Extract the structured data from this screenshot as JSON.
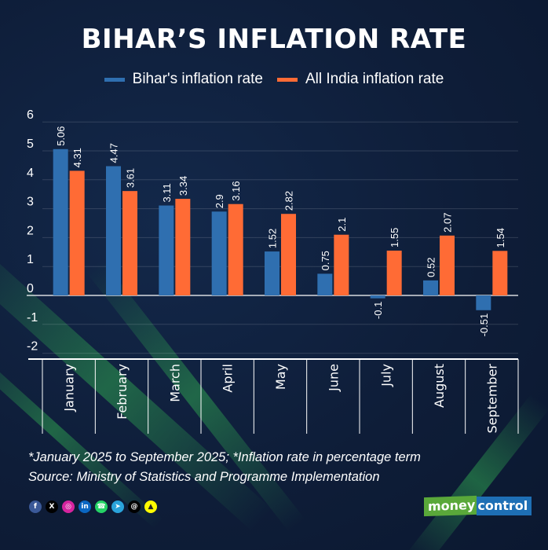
{
  "chart_data": {
    "type": "bar",
    "title": "BIHAR’S INFLATION RATE",
    "xlabel": "",
    "ylabel": "",
    "ylim": [
      -2,
      6
    ],
    "yticks": [
      6,
      5,
      4,
      3,
      2,
      1,
      0,
      -1,
      -2
    ],
    "grid": true,
    "legend_position": "top-center",
    "categories": [
      "January",
      "February",
      "March",
      "April",
      "May",
      "June",
      "July",
      "August",
      "September"
    ],
    "series": [
      {
        "name": "Bihar's inflation rate",
        "color": "#2f6fb0",
        "values": [
          5.06,
          4.47,
          3.11,
          2.9,
          1.52,
          0.75,
          -0.1,
          0.52,
          -0.51
        ],
        "labels": [
          "5.06",
          "4.47",
          "3.11",
          "2.9",
          "1.52",
          "0.75",
          "-0.1",
          "0.52",
          "-0.51"
        ]
      },
      {
        "name": "All India inflation rate",
        "color": "#ff6b35",
        "values": [
          4.31,
          3.61,
          3.34,
          3.16,
          2.82,
          2.1,
          1.55,
          2.07,
          1.54
        ],
        "labels": [
          "4.31",
          "3.61",
          "3.34",
          "3.16",
          "2.82",
          "2.1",
          "1.55",
          "2.07",
          "1.54"
        ]
      }
    ]
  },
  "footnote": {
    "line1": "*January 2025 to September 2025; *Inflation rate in percentage term",
    "line2": "Source: Ministry of Statistics and Programme Implementation"
  },
  "social": [
    {
      "name": "facebook",
      "glyph": "f",
      "color": "#3b5998"
    },
    {
      "name": "x",
      "glyph": "X",
      "color": "#000000"
    },
    {
      "name": "instagram",
      "glyph": "◎",
      "color": "#d6249f"
    },
    {
      "name": "linkedin",
      "glyph": "in",
      "color": "#0a66c2"
    },
    {
      "name": "whatsapp",
      "glyph": "☎",
      "color": "#25d366"
    },
    {
      "name": "telegram",
      "glyph": "➤",
      "color": "#2aa3db"
    },
    {
      "name": "threads",
      "glyph": "@",
      "color": "#000000"
    },
    {
      "name": "snapchat",
      "glyph": "▲",
      "color": "#fffc00"
    }
  ],
  "brand": {
    "part1": "money",
    "part2": "control"
  }
}
